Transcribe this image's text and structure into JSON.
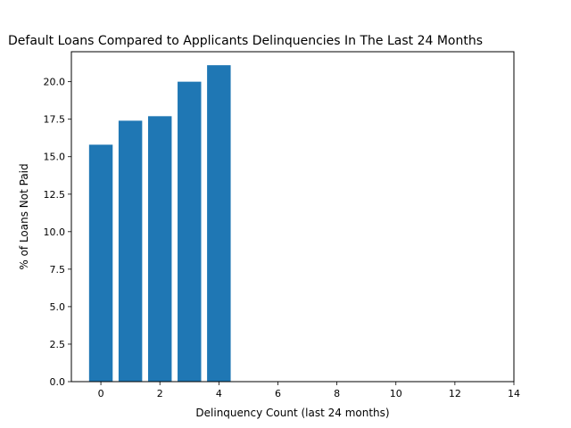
{
  "chart_data": {
    "type": "bar",
    "title": "Default Loans Compared to Applicants Delinquencies In The Last 24 Months",
    "xlabel": "Delinquency Count (last 24 months)",
    "ylabel": "% of Loans Not Paid",
    "x": [
      0,
      1,
      2,
      3,
      4
    ],
    "values": [
      15.8,
      17.4,
      17.7,
      20.0,
      21.1
    ],
    "bar_color": "#1f77b4",
    "xlim": [
      -1,
      14
    ],
    "ylim": [
      0,
      22
    ],
    "xticks": [
      0,
      2,
      4,
      6,
      8,
      10,
      12,
      14
    ],
    "xtick_labels": [
      "0",
      "2",
      "4",
      "6",
      "8",
      "10",
      "12",
      "14"
    ],
    "yticks": [
      0,
      2.5,
      5,
      7.5,
      10,
      12.5,
      15,
      17.5,
      20
    ],
    "ytick_labels": [
      "0.0",
      "2.5",
      "5.0",
      "7.5",
      "10.0",
      "12.5",
      "15.0",
      "17.5",
      "20.0"
    ],
    "grid": false,
    "legend": false
  }
}
